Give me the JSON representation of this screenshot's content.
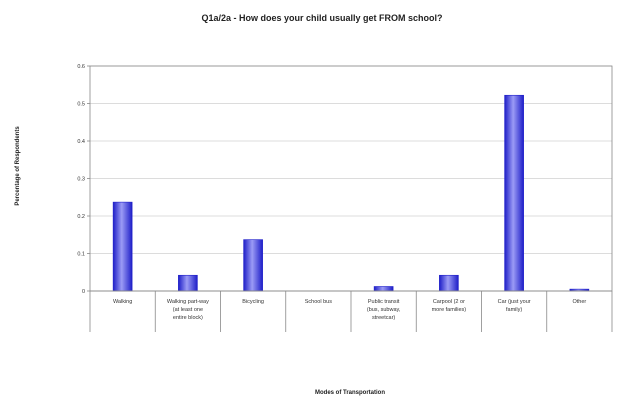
{
  "chart_data": {
    "type": "bar",
    "title": "Q1a/2a - How does your child usually get FROM school?",
    "xlabel": "Modes of Transportation",
    "ylabel": "Percentage of Respondents",
    "ylim": [
      0,
      0.6
    ],
    "yticks": [
      "0",
      "0.1",
      "0.2",
      "0.3",
      "0.4",
      "0.5",
      "0.6"
    ],
    "categories": [
      [
        "Walking"
      ],
      [
        "Walking part-way",
        "(at least one",
        "entire block)"
      ],
      [
        "Bicycling"
      ],
      [
        "School bus"
      ],
      [
        "Public transit",
        "(bus, subway,",
        "streetcar)"
      ],
      [
        "Carpool (2 or",
        "more families)"
      ],
      [
        "Car (just your",
        "family)"
      ],
      [
        "Other"
      ]
    ],
    "values": [
      0.237,
      0.042,
      0.137,
      0,
      0.012,
      0.042,
      0.522,
      0.005
    ],
    "grid": true,
    "colors": {
      "bar_dark": "#1e1ec8",
      "bar_light": "#9b9bf5",
      "grid": "#d0d0d0",
      "axis": "#888888"
    }
  }
}
